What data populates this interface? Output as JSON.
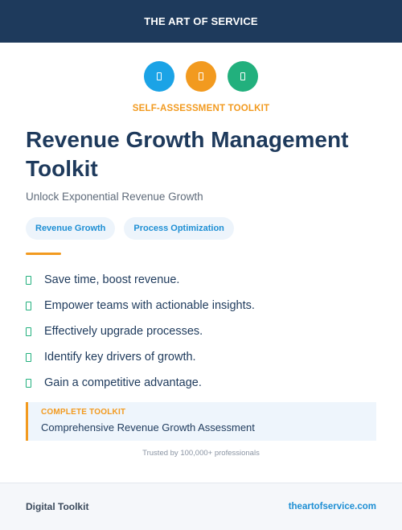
{
  "header": {
    "brand": "THE ART OF SERVICE",
    "color": "#1e3a5c"
  },
  "icons": [
    {
      "name": "book-icon",
      "color": "#1ba3e6"
    },
    {
      "name": "document-icon",
      "color": "#f29a1f"
    },
    {
      "name": "clipboard-icon",
      "color": "#22b07d"
    }
  ],
  "kicker": "SELF-ASSESSMENT TOOLKIT",
  "title": "Revenue Growth Management Toolkit",
  "subtitle": "Unlock Exponential Revenue Growth",
  "tags": [
    "Revenue Growth",
    "Process Optimization"
  ],
  "benefits": [
    "Save time, boost revenue.",
    "Empower teams with actionable insights.",
    "Effectively upgrade processes.",
    "Identify key drivers of growth.",
    "Gain a competitive advantage."
  ],
  "callout": {
    "label": "COMPLETE TOOLKIT",
    "value": "Comprehensive Revenue Growth Assessment"
  },
  "trust": "Trusted by 100,000+ professionals",
  "footer": {
    "left": "Digital Toolkit",
    "right": "theartofservice.com"
  },
  "accent_colors": {
    "orange": "#f29a1f",
    "blue": "#1e8fd4",
    "green": "#22b07d"
  }
}
